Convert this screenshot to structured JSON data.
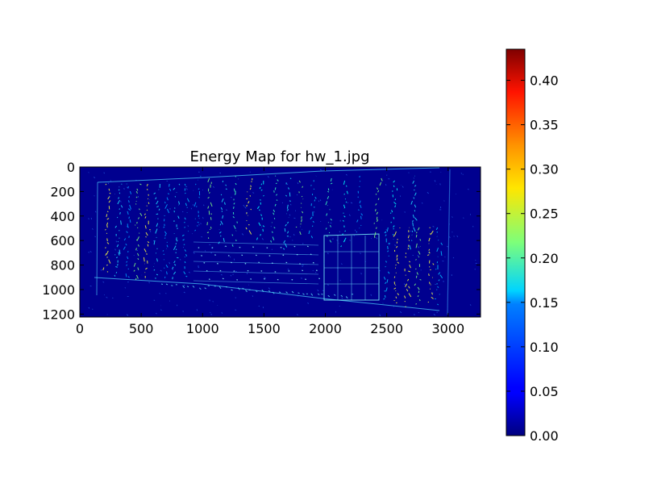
{
  "chart_data": [
    {
      "type": "heatmap",
      "title": "Energy Map for hw_1.jpg",
      "xlabel": "",
      "ylabel": "",
      "xlim": [
        0,
        3264
      ],
      "ylim": [
        1224,
        0
      ],
      "xticks": [
        0,
        500,
        1000,
        1500,
        2000,
        2500,
        3000
      ],
      "yticks": [
        0,
        200,
        400,
        600,
        800,
        1000,
        1200
      ],
      "grid": false,
      "colormap": "jet",
      "background_color": "#00008f",
      "description_of_content": "Edge-energy map of a handwritten document photo: faint cyan/yellow edge strokes on dark blue",
      "colorbar": {
        "range": [
          0.0,
          0.435
        ],
        "ticks": [
          0.0,
          0.05,
          0.1,
          0.15,
          0.2,
          0.25,
          0.3,
          0.35,
          0.4
        ],
        "tick_labels": [
          "0.00",
          "0.05",
          "0.10",
          "0.15",
          "0.20",
          "0.25",
          "0.30",
          "0.35",
          "0.40"
        ]
      }
    }
  ]
}
